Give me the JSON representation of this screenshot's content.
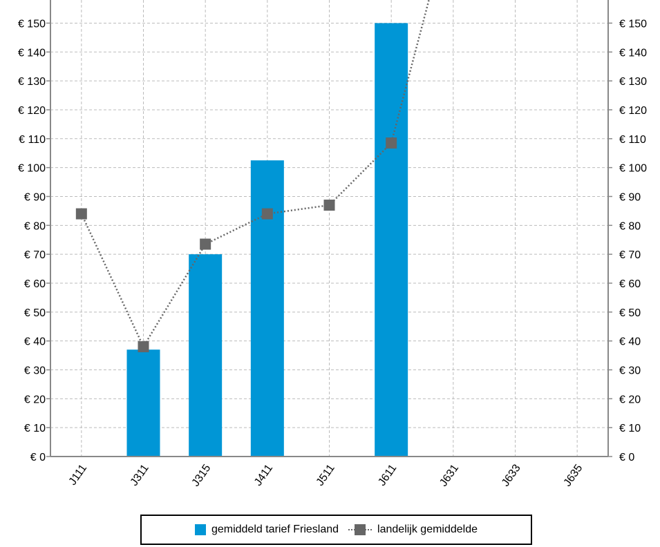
{
  "chart_data": {
    "type": "bar",
    "categories": [
      "J111",
      "J311",
      "J315",
      "J411",
      "J511",
      "J611",
      "J631",
      "J633",
      "J635"
    ],
    "series": [
      {
        "name": "gemiddeld tarief Friesland",
        "kind": "bar",
        "color": "#0096d6",
        "values": [
          null,
          37,
          70,
          102.5,
          null,
          150,
          null,
          null,
          null
        ]
      },
      {
        "name": "landelijk gemiddelde",
        "kind": "line",
        "line_style": "dotted",
        "marker": "square",
        "color": "#666666",
        "values": [
          84,
          38,
          73.5,
          84,
          87,
          108.5,
          190,
          null,
          null
        ]
      }
    ],
    "xlabel": "",
    "ylabel": "",
    "ylim": [
      0,
      158
    ],
    "y_ticks": [
      0,
      10,
      20,
      30,
      40,
      50,
      60,
      70,
      80,
      90,
      100,
      110,
      120,
      130,
      140,
      150
    ],
    "y_tick_labels": [
      "€ 0",
      "€ 10",
      "€ 20",
      "€ 30",
      "€ 40",
      "€ 50",
      "€ 60",
      "€ 70",
      "€ 80",
      "€ 90",
      "€ 100",
      "€ 110",
      "€ 120",
      "€ 130",
      "€ 140",
      "€ 150"
    ],
    "secondary_y_axis": true,
    "grid": true,
    "x_tick_rotation": "diagonal",
    "legend_position": "bottom"
  }
}
